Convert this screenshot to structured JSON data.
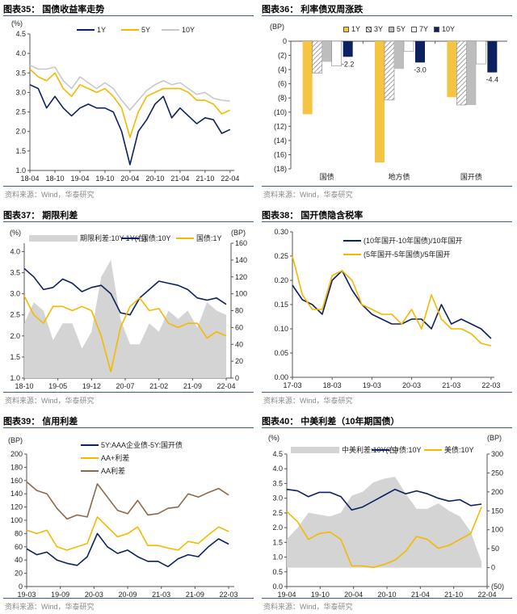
{
  "source": "资料来源：Wind，华泰研究",
  "colors": {
    "navy": "#0d2160",
    "gold": "#f5b800",
    "lightgray": "#c8c8c8",
    "area": "#d4d4d4",
    "brown": "#8b6a4c",
    "rule": "#3d5a8a"
  },
  "chart_data": [
    {
      "id": "c35",
      "type": "line",
      "title": "图表35：  国债收益率走势",
      "ylabel": "(%)",
      "ylim": [
        1.0,
        4.5
      ],
      "yticks": [
        "1.0",
        "1.5",
        "2.0",
        "2.5",
        "3.0",
        "3.5",
        "4.0",
        "4.5"
      ],
      "xticks": [
        "18-04",
        "18-10",
        "19-04",
        "19-10",
        "20-04",
        "20-10",
        "21-04",
        "21-10",
        "22-04"
      ],
      "start": "18-04",
      "end": "22-05",
      "series": [
        {
          "name": "1Y",
          "color": "#0d2160",
          "values": [
            3.2,
            3.1,
            2.6,
            2.9,
            2.6,
            2.4,
            2.6,
            2.7,
            2.6,
            2.6,
            2.5,
            2.0,
            1.15,
            2.0,
            2.3,
            2.7,
            2.9,
            2.35,
            2.6,
            2.4,
            2.2,
            2.35,
            2.3,
            1.95,
            2.05
          ]
        },
        {
          "name": "5Y",
          "color": "#f5b800",
          "values": [
            3.6,
            3.4,
            3.3,
            3.5,
            3.1,
            2.9,
            3.2,
            3.1,
            3.0,
            3.1,
            2.9,
            2.6,
            1.85,
            2.5,
            2.9,
            3.0,
            3.1,
            3.1,
            3.1,
            3.0,
            2.8,
            2.8,
            2.7,
            2.45,
            2.55
          ]
        },
        {
          "name": "10Y",
          "color": "#c8c8c8",
          "values": [
            3.7,
            3.6,
            3.6,
            3.65,
            3.3,
            3.1,
            3.4,
            3.25,
            3.1,
            3.25,
            3.1,
            2.8,
            2.55,
            2.8,
            3.05,
            3.2,
            3.3,
            3.2,
            3.25,
            3.1,
            2.95,
            3.0,
            2.85,
            2.8,
            2.78
          ]
        }
      ]
    },
    {
      "id": "c36",
      "type": "bar",
      "title": "图表36：  利率债双周涨跌",
      "ylabel": "(BP)",
      "ylim": [
        -18,
        0
      ],
      "yticks": [
        "(18)",
        "(16)",
        "(14)",
        "(12)",
        "(10)",
        "(8)",
        "(6)",
        "(4)",
        "(2)",
        "0"
      ],
      "categories": [
        "国债",
        "地方债",
        "国开债"
      ],
      "series": [
        {
          "name": "1Y",
          "color": "#f5c542",
          "values": [
            -10.3,
            -17.1,
            -7.9
          ]
        },
        {
          "name": "3Y",
          "color": "hatch",
          "values": [
            -4.5,
            -8.3,
            -9.0
          ]
        },
        {
          "name": "5Y",
          "color": "#bdbdbd",
          "values": [
            -2.9,
            -3.9,
            -9.0
          ]
        },
        {
          "name": "7Y",
          "color": "#ffffff",
          "values": [
            -3.5,
            -1.4,
            -3.2
          ]
        },
        {
          "name": "10Y",
          "color": "#0d2160",
          "values": [
            -2.2,
            -3.0,
            -4.4
          ],
          "labels": [
            "-2.2",
            "-3.0",
            "-4.4"
          ]
        }
      ]
    },
    {
      "id": "c37",
      "type": "line",
      "title": "图表37：  期限利差",
      "ylabel": "(%)",
      "y2label": "(BP)",
      "ylim": [
        1.0,
        4.2
      ],
      "y2lim": [
        0,
        160
      ],
      "yticks": [
        "1.0",
        "1.5",
        "2.0",
        "2.5",
        "3.0",
        "3.5",
        "4.0"
      ],
      "y2ticks": [
        "0",
        "20",
        "40",
        "60",
        "80",
        "100",
        "120",
        "140",
        "160"
      ],
      "xticks": [
        "18-10",
        "19-05",
        "19-12",
        "20-07",
        "21-02",
        "21-09",
        "22-04"
      ],
      "start": "18-10",
      "end": "22-05",
      "series": [
        {
          "name": "期限利差:10Y-1Y(右)",
          "color": "#d4d4d4",
          "axis": "right",
          "area": true,
          "values": [
            65,
            90,
            80,
            45,
            65,
            65,
            35,
            55,
            120,
            140,
            70,
            40,
            40,
            65,
            55,
            80,
            70,
            80,
            60,
            90,
            80,
            75
          ]
        },
        {
          "name": "国债:10Y",
          "color": "#0d2160",
          "values": [
            3.6,
            3.4,
            3.1,
            3.15,
            3.35,
            3.25,
            3.05,
            3.15,
            3.2,
            3.0,
            2.55,
            2.5,
            2.9,
            3.1,
            3.3,
            3.25,
            3.2,
            3.1,
            2.9,
            2.85,
            2.9,
            2.75
          ]
        },
        {
          "name": "国债:1Y",
          "color": "#f5b800",
          "values": [
            2.95,
            2.5,
            2.3,
            2.7,
            2.7,
            2.6,
            2.7,
            2.6,
            2.0,
            1.15,
            2.2,
            2.7,
            2.9,
            2.6,
            2.65,
            2.3,
            2.2,
            2.3,
            2.3,
            1.95,
            2.1,
            2.0
          ]
        }
      ]
    },
    {
      "id": "c38",
      "type": "line",
      "title": "图表38：  国开债隐含税率",
      "ylim": [
        0,
        0.3
      ],
      "yticks": [
        "0.00",
        "0.05",
        "0.10",
        "0.15",
        "0.20",
        "0.25",
        "0.30"
      ],
      "xticks": [
        "17-03",
        "18-03",
        "19-03",
        "20-03",
        "21-03",
        "22-03"
      ],
      "start": "17-03",
      "end": "22-04",
      "series": [
        {
          "name": "(10年国开-10年国债)/10年国开",
          "color": "#0d2160",
          "values": [
            0.19,
            0.16,
            0.15,
            0.13,
            0.2,
            0.22,
            0.18,
            0.15,
            0.13,
            0.12,
            0.11,
            0.11,
            0.12,
            0.12,
            0.1,
            0.15,
            0.11,
            0.12,
            0.11,
            0.1,
            0.08
          ]
        },
        {
          "name": "(5年国开-5年国债)/5年国开",
          "color": "#f5b800",
          "values": [
            0.25,
            0.17,
            0.14,
            0.14,
            0.21,
            0.22,
            0.2,
            0.15,
            0.14,
            0.13,
            0.13,
            0.11,
            0.14,
            0.1,
            0.17,
            0.12,
            0.1,
            0.1,
            0.09,
            0.07,
            0.065
          ]
        }
      ]
    },
    {
      "id": "c39",
      "type": "line",
      "title": "图表39：  信用利差",
      "ylabel": "(BP)",
      "ylim": [
        0,
        200
      ],
      "yticks": [
        "0",
        "20",
        "40",
        "60",
        "80",
        "100",
        "120",
        "140",
        "160",
        "180",
        "200"
      ],
      "xticks": [
        "19-03",
        "19-09",
        "20-03",
        "20-09",
        "21-03",
        "21-09",
        "22-03"
      ],
      "start": "19-03",
      "end": "22-04",
      "series": [
        {
          "name": "5Y:AAA企业债-5Y:国开债",
          "color": "#0d2160",
          "values": [
            57,
            48,
            52,
            40,
            35,
            32,
            45,
            80,
            60,
            50,
            55,
            45,
            38,
            38,
            30,
            42,
            48,
            45,
            60,
            72,
            64
          ]
        },
        {
          "name": "AA+利差",
          "color": "#f5b800",
          "values": [
            85,
            80,
            85,
            60,
            55,
            60,
            65,
            105,
            90,
            75,
            80,
            90,
            62,
            62,
            58,
            55,
            68,
            65,
            78,
            90,
            83
          ]
        },
        {
          "name": "AA利差",
          "color": "#8b6a4c",
          "values": [
            158,
            145,
            140,
            118,
            102,
            108,
            105,
            155,
            135,
            115,
            110,
            130,
            108,
            110,
            118,
            120,
            140,
            135,
            142,
            148,
            138
          ]
        }
      ]
    },
    {
      "id": "c40",
      "type": "line",
      "title": "图表40：  中美利差（10年期国债）",
      "ylabel": "(%)",
      "y2label": "(BP)",
      "ylim": [
        0,
        4.5
      ],
      "y2lim": [
        -50,
        300
      ],
      "yticks": [
        "0.0",
        "0.5",
        "1.0",
        "1.5",
        "2.0",
        "2.5",
        "3.0",
        "3.5",
        "4.0",
        "4.5"
      ],
      "y2ticks": [
        "(50)",
        "0",
        "50",
        "100",
        "150",
        "200",
        "250",
        "300"
      ],
      "xticks": [
        "19-04",
        "19-10",
        "20-04",
        "20-10",
        "21-04",
        "21-10",
        "22-04"
      ],
      "start": "19-04",
      "end": "22-04",
      "series": [
        {
          "name": "中美利差:10Y(右)",
          "color": "#d4d4d4",
          "axis": "right",
          "area": true,
          "values": [
            75,
            105,
            145,
            140,
            135,
            145,
            190,
            200,
            225,
            235,
            240,
            195,
            155,
            155,
            170,
            150,
            135,
            95,
            15
          ]
        },
        {
          "name": "中债:10Y",
          "color": "#0d2160",
          "values": [
            3.3,
            3.25,
            3.05,
            3.2,
            3.2,
            3.05,
            2.6,
            2.7,
            2.9,
            3.1,
            3.3,
            3.15,
            3.25,
            3.15,
            3.0,
            2.9,
            2.95,
            2.75,
            2.8
          ]
        },
        {
          "name": "美债:10Y",
          "color": "#f5b800",
          "values": [
            2.55,
            2.2,
            1.6,
            1.8,
            1.85,
            1.6,
            0.7,
            0.7,
            0.65,
            0.75,
            0.9,
            1.2,
            1.7,
            1.6,
            1.3,
            1.4,
            1.6,
            1.8,
            2.7
          ]
        }
      ]
    }
  ]
}
